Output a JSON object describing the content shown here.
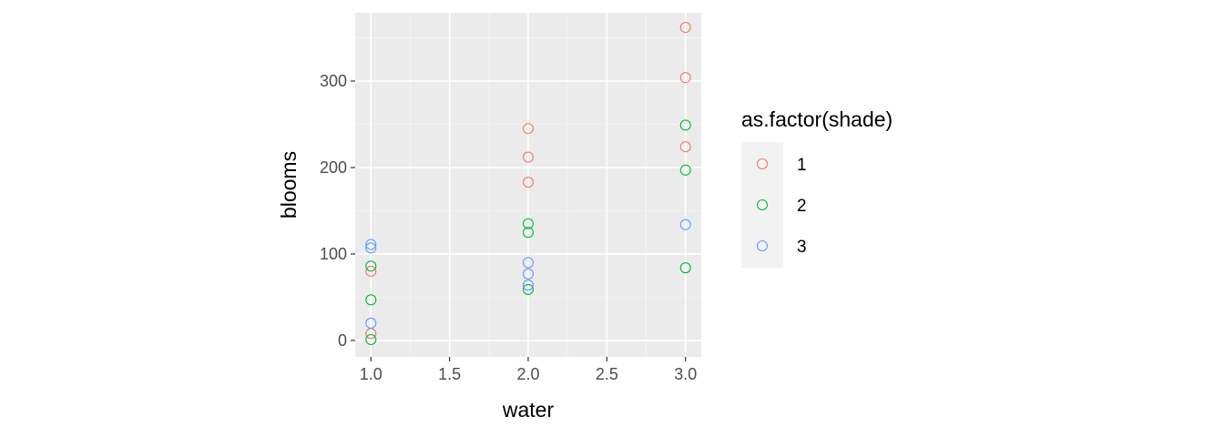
{
  "chart_data": {
    "type": "scatter",
    "xlabel": "water",
    "ylabel": "blooms",
    "xlim": [
      0.9,
      3.1
    ],
    "ylim": [
      -19,
      379
    ],
    "x_ticks": [
      1.0,
      1.5,
      2.0,
      2.5,
      3.0
    ],
    "x_tick_labels": [
      "1.0",
      "1.5",
      "2.0",
      "2.5",
      "3.0"
    ],
    "y_ticks": [
      0,
      100,
      200,
      300
    ],
    "y_tick_labels": [
      "0",
      "100",
      "200",
      "300"
    ],
    "grid": true,
    "legend": {
      "title": "as.factor(shade)",
      "position": "right"
    },
    "series": [
      {
        "name": "1",
        "color": "#F8766D",
        "points": [
          {
            "x": 1,
            "y": 80
          },
          {
            "x": 1,
            "y": 8
          },
          {
            "x": 2,
            "y": 245
          },
          {
            "x": 2,
            "y": 212
          },
          {
            "x": 2,
            "y": 183
          },
          {
            "x": 3,
            "y": 362
          },
          {
            "x": 3,
            "y": 304
          },
          {
            "x": 3,
            "y": 224
          }
        ]
      },
      {
        "name": "2",
        "color": "#00BA38",
        "points": [
          {
            "x": 1,
            "y": 86
          },
          {
            "x": 1,
            "y": 47
          },
          {
            "x": 1,
            "y": 1
          },
          {
            "x": 2,
            "y": 135
          },
          {
            "x": 2,
            "y": 125
          },
          {
            "x": 2,
            "y": 59
          },
          {
            "x": 3,
            "y": 249
          },
          {
            "x": 3,
            "y": 197
          },
          {
            "x": 3,
            "y": 84
          }
        ]
      },
      {
        "name": "3",
        "color": "#619CFF",
        "points": [
          {
            "x": 1,
            "y": 111
          },
          {
            "x": 1,
            "y": 107
          },
          {
            "x": 1,
            "y": 20
          },
          {
            "x": 2,
            "y": 90
          },
          {
            "x": 2,
            "y": 77
          },
          {
            "x": 2,
            "y": 64
          },
          {
            "x": 3,
            "y": 134
          }
        ]
      }
    ]
  }
}
